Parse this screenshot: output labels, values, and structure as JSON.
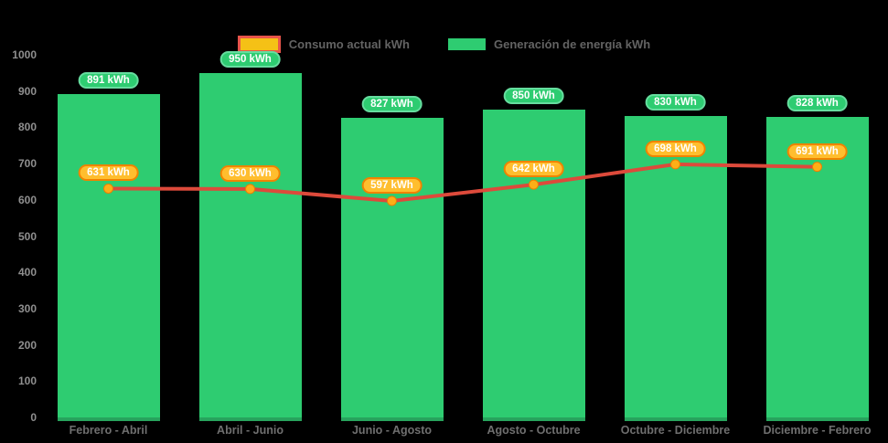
{
  "chart_data": {
    "type": "bar",
    "subtype": "bar-with-line-overlay",
    "title": "",
    "xlabel": "",
    "ylabel": "",
    "categories": [
      "Febrero - Abril",
      "Abril - Junio",
      "Junio - Agosto",
      "Agosto - Octubre",
      "Octubre - Diciembre",
      "Diciembre - Febrero"
    ],
    "series": [
      {
        "name": "Consumo actual kWh",
        "type": "line",
        "values": [
          631,
          630,
          597,
          642,
          698,
          691
        ],
        "color": "#dd4a3b",
        "marker_color": "#fcaf17",
        "label_bg": "#ffbe2e",
        "label_border": "#f08300"
      },
      {
        "name": "Generación de energía kWh",
        "type": "bar",
        "values": [
          891,
          950,
          827,
          850,
          830,
          828
        ],
        "color": "#2ecc71",
        "label_bg": "#2ecc71",
        "label_border": "#66dd9f"
      }
    ],
    "value_suffix": " kWh",
    "ylim": [
      0,
      1000
    ],
    "yticks": [
      0,
      100,
      200,
      300,
      400,
      500,
      600,
      700,
      800,
      900,
      1000
    ],
    "legend_position": "top",
    "grid": false,
    "background_color": "#000000",
    "bar_color": "#2ecc71",
    "line_color": "#dd4a3b",
    "accent_gold": "#ffbe2e"
  }
}
